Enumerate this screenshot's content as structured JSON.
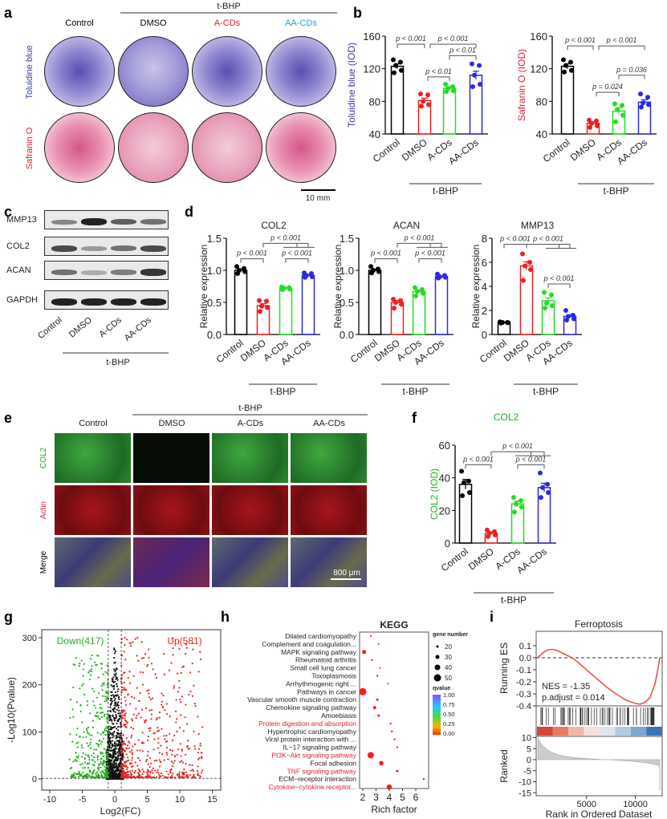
{
  "panel_letters": {
    "a": "a",
    "b": "b",
    "c": "c",
    "d": "d",
    "e": "e",
    "f": "f",
    "g": "g",
    "h": "h",
    "i": "i"
  },
  "panel_a": {
    "treatment": "t-BHP",
    "columns": [
      "Control",
      "DMSO",
      "A-CDs",
      "AA-CDs"
    ],
    "column_colors": [
      "#000000",
      "#000000",
      "#e02020",
      "#1aa0e0"
    ],
    "rows": [
      "Toluidine blue",
      "Safranin O"
    ],
    "row_colors": [
      "#3b3bb0",
      "#e0203a"
    ],
    "scale_bar": "10 mm"
  },
  "panel_c": {
    "bands": [
      "MMP13",
      "COL2",
      "ACAN",
      "GAPDH"
    ],
    "lanes": [
      "Control",
      "DMSO",
      "A-CDs",
      "AA-CDs"
    ],
    "treatment": "t-BHP"
  },
  "panel_e": {
    "treatment": "t-BHP",
    "columns": [
      "Control",
      "DMSO",
      "A-CDs",
      "AA-CDs"
    ],
    "rows": [
      "COL2",
      "Actin",
      "Merge"
    ],
    "row_colors": [
      "#22a022",
      "#e0203a",
      "#000000"
    ],
    "scale_bar": "800 μm"
  },
  "colors": {
    "Control": "#000000",
    "DMSO": "#ee2020",
    "A-CDs": "#22dd22",
    "AA-CDs": "#2a2ae0"
  },
  "chart_data": [
    {
      "id": "b1",
      "type": "bar",
      "title": "",
      "ylabel": "Toluidine blue (IOD)",
      "ylabel_color": "#3b3bb0",
      "ylim": [
        40,
        160
      ],
      "yticks": [
        40,
        80,
        120,
        160
      ],
      "categories": [
        "Control",
        "DMSO",
        "A-CDs",
        "AA-CDs"
      ],
      "values": [
        123,
        81,
        96,
        112
      ],
      "sem": [
        3,
        3,
        2,
        5
      ],
      "points": [
        [
          131,
          128,
          124,
          118,
          115
        ],
        [
          89,
          88,
          80,
          76,
          74
        ],
        [
          101,
          98,
          96,
          93,
          92
        ],
        [
          126,
          124,
          112,
          101,
          98
        ]
      ],
      "group_label": "t-BHP",
      "brackets": [
        {
          "from": 0,
          "to": 1,
          "y": 150,
          "label": "p < 0.001"
        },
        {
          "from": 1,
          "to": 3,
          "y": 150,
          "label": "p < 0.001"
        },
        {
          "from": 2,
          "to": 3,
          "y": 136,
          "label": "p < 0.01"
        },
        {
          "from": 1,
          "to": 2,
          "y": 110,
          "label": "p < 0.01"
        }
      ]
    },
    {
      "id": "b2",
      "type": "bar",
      "title": "",
      "ylabel": "Safranin O (IOD)",
      "ylabel_color": "#e0203a",
      "ylim": [
        40,
        160
      ],
      "yticks": [
        40,
        80,
        120,
        160
      ],
      "categories": [
        "Control",
        "DMSO",
        "A-CDs",
        "AA-CDs"
      ],
      "values": [
        123,
        53,
        68,
        79
      ],
      "sem": [
        3,
        2,
        4,
        3
      ],
      "points": [
        [
          131,
          128,
          124,
          118,
          116
        ],
        [
          57,
          56,
          53,
          50,
          48
        ],
        [
          77,
          75,
          70,
          63,
          55
        ],
        [
          89,
          85,
          78,
          76,
          73
        ]
      ],
      "group_label": "t-BHP",
      "brackets": [
        {
          "from": 0,
          "to": 1,
          "y": 148,
          "label": "p < 0.001"
        },
        {
          "from": 1,
          "to": 3,
          "y": 148,
          "label": "p < 0.001"
        },
        {
          "from": 2,
          "to": 3,
          "y": 112,
          "label": "p = 0.036"
        },
        {
          "from": 1,
          "to": 2,
          "y": 91,
          "label": "p = 0.024"
        }
      ]
    },
    {
      "id": "d1",
      "type": "bar",
      "title": "COL2",
      "ylabel": "Relative expression",
      "ylim": [
        0,
        1.5
      ],
      "yticks": [
        "0.0",
        "0.5",
        "1.0",
        "1.5"
      ],
      "categories": [
        "Control",
        "DMSO",
        "A-CDs",
        "AA-CDs"
      ],
      "values": [
        1.0,
        0.45,
        0.72,
        0.92
      ],
      "sem": [
        0.02,
        0.03,
        0.01,
        0.015
      ],
      "points": [
        [
          1.06,
          1.03,
          1.0,
          0.98,
          0.95
        ],
        [
          0.53,
          0.52,
          0.44,
          0.42,
          0.36
        ],
        [
          0.74,
          0.73,
          0.72,
          0.71,
          0.7
        ],
        [
          0.96,
          0.95,
          0.92,
          0.9,
          0.89
        ]
      ],
      "group_label": "t-BHP",
      "brackets": [
        {
          "from": 1,
          "to": 3,
          "y": 1.42,
          "label": "p < 0.001",
          "nested": true
        },
        {
          "from": 0,
          "to": 1,
          "y": 1.18,
          "label": "p < 0.001"
        },
        {
          "from": 2,
          "to": 3,
          "y": 1.18,
          "label": "p < 0.001"
        }
      ]
    },
    {
      "id": "d2",
      "type": "bar",
      "title": "ACAN",
      "ylabel": "Relative expression",
      "ylim": [
        0,
        1.5
      ],
      "yticks": [
        "0.0",
        "0.5",
        "1.0",
        "1.5"
      ],
      "categories": [
        "Control",
        "DMSO",
        "A-CDs",
        "AA-CDs"
      ],
      "values": [
        1.0,
        0.5,
        0.67,
        0.9
      ],
      "sem": [
        0.02,
        0.03,
        0.02,
        0.01
      ],
      "points": [
        [
          1.06,
          1.02,
          1.0,
          0.98,
          0.96
        ],
        [
          0.55,
          0.53,
          0.5,
          0.47,
          0.41
        ],
        [
          0.73,
          0.7,
          0.67,
          0.64,
          0.6
        ],
        [
          0.94,
          0.92,
          0.9,
          0.89,
          0.88
        ]
      ],
      "group_label": "t-BHP",
      "brackets": [
        {
          "from": 1,
          "to": 3,
          "y": 1.42,
          "label": "p < 0.001",
          "nested": true
        },
        {
          "from": 0,
          "to": 1,
          "y": 1.18,
          "label": "p < 0.001"
        },
        {
          "from": 2,
          "to": 3,
          "y": 1.18,
          "label": "p < 0.001"
        }
      ]
    },
    {
      "id": "d3",
      "type": "bar",
      "title": "MMP13",
      "ylabel": "Relative expression",
      "ylim": [
        0,
        8
      ],
      "yticks": [
        "0",
        "2",
        "4",
        "6",
        "8"
      ],
      "categories": [
        "Control",
        "DMSO",
        "A-CDs",
        "AA-CDs"
      ],
      "values": [
        1.0,
        5.7,
        2.8,
        1.5
      ],
      "sem": [
        0.02,
        0.35,
        0.25,
        0.15
      ],
      "points": [
        [
          1.05,
          1.0,
          1.0,
          0.98,
          0.95
        ],
        [
          6.7,
          6.0,
          5.7,
          5.4,
          4.5
        ],
        [
          3.5,
          3.3,
          2.6,
          2.4,
          2.2
        ],
        [
          2.0,
          1.6,
          1.5,
          1.3,
          1.2
        ]
      ],
      "group_label": "t-BHP",
      "brackets": [
        {
          "from": 0,
          "to": 1,
          "y": 7.5,
          "label": "p < 0.001"
        },
        {
          "from": 1,
          "to": 3,
          "y": 7.5,
          "label": "p < 0.001",
          "nested": true
        },
        {
          "from": 2,
          "to": 3,
          "y": 4.2,
          "label": "p < 0.001"
        }
      ]
    },
    {
      "id": "f",
      "type": "bar",
      "title": "COL2",
      "title_color": "#22b022",
      "ylabel": "COL2 (IOD)",
      "ylabel_color": "#22b022",
      "ylim": [
        0,
        60
      ],
      "yticks": [
        0,
        20,
        40,
        60
      ],
      "categories": [
        "Control",
        "DMSO",
        "A-CDs",
        "AA-CDs"
      ],
      "values": [
        36,
        6,
        24,
        34
      ],
      "sem": [
        3,
        0.7,
        1.8,
        2.7
      ],
      "points": [
        [
          44,
          38,
          37,
          31,
          29
        ],
        [
          8,
          7,
          6,
          5,
          4
        ],
        [
          28,
          26,
          24,
          22,
          19
        ],
        [
          43,
          36,
          34,
          31,
          28
        ]
      ],
      "group_label": "t-BHP",
      "brackets": [
        {
          "from": 1,
          "to": 3,
          "y": 56,
          "label": "p < 0.001",
          "nested": true
        },
        {
          "from": 0,
          "to": 1,
          "y": 48,
          "label": "p < 0.001"
        },
        {
          "from": 2,
          "to": 3,
          "y": 48,
          "label": "p < 0.001"
        }
      ]
    },
    {
      "id": "g",
      "type": "scatter",
      "title": "",
      "xlabel": "Log2(FC)",
      "ylabel": "-Log10(Pvalue)",
      "xlim": [
        -10,
        15
      ],
      "ylim": [
        0,
        300
      ],
      "xticks": [
        -10,
        -5,
        0,
        5,
        10,
        15
      ],
      "yticks": [
        0,
        100,
        200,
        300
      ],
      "legend": {
        "down": "Down(417)",
        "up": "Up(581)"
      },
      "down_count": 417,
      "up_count": 581,
      "thresholds": {
        "log2fc": [
          -1,
          1
        ],
        "neglog10p": 1.3
      },
      "series_colors": {
        "down": "#22b022",
        "up": "#e8261e",
        "ns": "#111111"
      }
    },
    {
      "id": "h",
      "type": "scatter",
      "title": "KEGG",
      "xlabel": "Rich factor",
      "xticks": [
        2,
        3,
        4,
        5,
        6
      ],
      "xlim": [
        1.8,
        6.7
      ],
      "terms": [
        {
          "name": "Dilated cardiomyopathy",
          "rich": 2.6,
          "genes": 20,
          "q": 0.0,
          "red": false
        },
        {
          "name": "Complement and coagulation...",
          "rich": 3.2,
          "genes": 15,
          "q": 0.0,
          "red": false
        },
        {
          "name": "MAPK signaling pathway",
          "rich": 2.1,
          "genes": 35,
          "q": 0.0,
          "red": false
        },
        {
          "name": "Rheumatoid arthritis",
          "rich": 2.7,
          "genes": 22,
          "q": 0.0,
          "red": false
        },
        {
          "name": "Small cell lung cancer",
          "rich": 3.3,
          "genes": 20,
          "q": 0.0,
          "red": false
        },
        {
          "name": "Toxoplasmosis",
          "rich": 3.1,
          "genes": 22,
          "q": 0.0,
          "red": false
        },
        {
          "name": "Arrhythmogenic right ...",
          "rich": 3.9,
          "genes": 18,
          "q": 0.0,
          "red": false
        },
        {
          "name": "Pathways in cancer",
          "rich": 2.0,
          "genes": 55,
          "q": 0.0,
          "red": false
        },
        {
          "name": "Vascular smooth muscle contraction",
          "rich": 3.1,
          "genes": 25,
          "q": 0.0,
          "red": false
        },
        {
          "name": "Chemokine signaling pathway",
          "rich": 2.9,
          "genes": 30,
          "q": 0.0,
          "red": false
        },
        {
          "name": "Amoebiasis",
          "rich": 3.2,
          "genes": 25,
          "q": 0.0,
          "red": false
        },
        {
          "name": "Protein digestion and absorption",
          "rich": 4.1,
          "genes": 22,
          "q": 0.0,
          "red": true
        },
        {
          "name": "Hypertrophic cardiomyopathy",
          "rich": 4.2,
          "genes": 22,
          "q": 0.0,
          "red": false
        },
        {
          "name": "Viral protein interaction with ...",
          "rich": 4.4,
          "genes": 22,
          "q": 0.0,
          "red": false
        },
        {
          "name": "IL−17 signaling pathway",
          "rich": 4.6,
          "genes": 22,
          "q": 0.0,
          "red": false
        },
        {
          "name": "PI3K−Akt signaling pathway",
          "rich": 2.6,
          "genes": 50,
          "q": 0.0,
          "red": true
        },
        {
          "name": "Focal adhesion",
          "rich": 3.4,
          "genes": 38,
          "q": 0.0,
          "red": false
        },
        {
          "name": "TNF signaling pathway",
          "rich": 4.6,
          "genes": 25,
          "q": 0.0,
          "red": true
        },
        {
          "name": "ECM−receptor interaction",
          "rich": 6.6,
          "genes": 22,
          "q": 0.0,
          "red": false
        },
        {
          "name": "Cytokine−cytokine receptor...",
          "rich": 4.0,
          "genes": 42,
          "q": 0.0,
          "red": true
        }
      ],
      "size_legend": {
        "title": "gene number",
        "values": [
          20,
          30,
          40,
          50
        ]
      },
      "color_legend": {
        "title": "qvalue",
        "ticks": [
          "1.00",
          "0.75",
          "0.50",
          "0.25",
          "0.00"
        ]
      }
    },
    {
      "id": "i",
      "type": "line",
      "title": "Ferroptosis",
      "xlabel": "Rank in Ordered Dataset",
      "ylabel_top": "Running ES",
      "ylabel_bottom": "Ranked",
      "xlim": [
        0,
        12500
      ],
      "xticks": [
        5000,
        10000
      ],
      "es_ylim": [
        -0.45,
        0.15
      ],
      "es_yticks": [
        "0.1",
        "0.0",
        "-0.1",
        "-0.2",
        "-0.3",
        "-0.4"
      ],
      "ranked_ylim": [
        -16,
        11
      ],
      "ranked_yticks": [
        "10",
        "5",
        "0",
        "-5",
        "-10",
        "-15"
      ],
      "es_curve": {
        "x": [
          0,
          500,
          1000,
          1500,
          2000,
          2500,
          3000,
          3500,
          4000,
          5000,
          6000,
          7000,
          8000,
          9000,
          10000,
          10500,
          11000,
          11500,
          12000,
          12300,
          12500
        ],
        "y": [
          0,
          0.04,
          0.065,
          0.07,
          0.06,
          0.04,
          0.02,
          0,
          -0.03,
          -0.1,
          -0.17,
          -0.24,
          -0.3,
          -0.35,
          -0.38,
          -0.385,
          -0.37,
          -0.33,
          -0.22,
          -0.1,
          0
        ]
      },
      "annotations": [
        "NES = -1.35",
        "p.adjust = 0.014"
      ]
    }
  ]
}
